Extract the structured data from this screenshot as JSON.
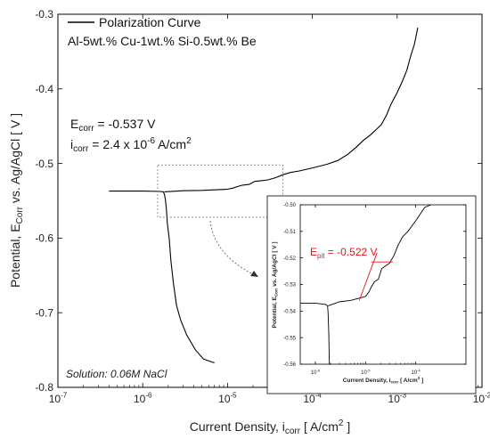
{
  "chart_data": [
    {
      "type": "line",
      "xscale": "log",
      "xlim": [
        1e-07,
        0.01
      ],
      "ylim": [
        -0.8,
        -0.3
      ],
      "xlabel": {
        "main": "Current Density, i",
        "sub": "corr",
        "rest": "  [ A/cm",
        "sup": "2",
        "end": " ]"
      },
      "ylabel": {
        "main": "Potential, E",
        "sub": "Corr",
        "rest": " vs. Ag/AgCl  [ V ]"
      },
      "x_ticks": [
        {
          "value": 1e-07,
          "base": "10",
          "exp": "-7"
        },
        {
          "value": 1e-06,
          "base": "10",
          "exp": "-6"
        },
        {
          "value": 1e-05,
          "base": "10",
          "exp": "-5"
        },
        {
          "value": 0.0001,
          "base": "10",
          "exp": "-4"
        },
        {
          "value": 0.001,
          "base": "10",
          "exp": "-3"
        },
        {
          "value": 0.01,
          "base": "10",
          "exp": "-2"
        }
      ],
      "y_ticks": [
        {
          "value": -0.3,
          "label": "-0.3"
        },
        {
          "value": -0.4,
          "label": "-0.4"
        },
        {
          "value": -0.5,
          "label": "-0.5"
        },
        {
          "value": -0.6,
          "label": "-0.6"
        },
        {
          "value": -0.7,
          "label": "-0.7"
        },
        {
          "value": -0.8,
          "label": "-0.8"
        }
      ],
      "legend": {
        "label": "Polarization Curve",
        "placement": "top-left"
      },
      "alloy_label": "Al-5wt.% Cu-1wt.% Si-0.5wt.% Be",
      "ecorr": {
        "prefix": "E",
        "sub": "corr",
        "value": " = -0.537 V"
      },
      "icorr": {
        "prefix": "i",
        "sub": "corr",
        "mid": " = 2.4 x 10",
        "sup": "-6",
        "rest": " A/cm",
        "sup2": "2"
      },
      "solution": "Solution: 0.06M NaCl",
      "series": [
        {
          "color": "#000000",
          "cathodic": [
            [
              4e-07,
              -0.537
            ],
            [
              1e-06,
              -0.537
            ],
            [
              1.6e-06,
              -0.5375
            ],
            [
              1.75e-06,
              -0.538
            ],
            [
              1.8e-06,
              -0.541
            ],
            [
              1.85e-06,
              -0.548
            ],
            [
              1.9e-06,
              -0.56
            ],
            [
              1.95e-06,
              -0.58
            ],
            [
              2.05e-06,
              -0.6
            ],
            [
              2.15e-06,
              -0.63
            ],
            [
              2.3e-06,
              -0.66
            ],
            [
              2.5e-06,
              -0.69
            ],
            [
              2.8e-06,
              -0.71
            ],
            [
              3.3e-06,
              -0.73
            ],
            [
              4.2e-06,
              -0.75
            ],
            [
              5.2e-06,
              -0.762
            ],
            [
              6.5e-06,
              -0.766
            ],
            [
              7e-06,
              -0.767
            ]
          ],
          "anodic": [
            [
              1.8e-06,
              -0.538
            ],
            [
              3e-06,
              -0.5365
            ],
            [
              5e-06,
              -0.536
            ],
            [
              8e-06,
              -0.535
            ],
            [
              1e-05,
              -0.5345
            ],
            [
              1.15e-05,
              -0.533
            ],
            [
              1.3e-05,
              -0.531
            ],
            [
              1.5e-05,
              -0.529
            ],
            [
              1.8e-05,
              -0.528
            ],
            [
              2.1e-05,
              -0.524
            ],
            [
              2.5e-05,
              -0.523
            ],
            [
              3e-05,
              -0.522
            ],
            [
              3.7e-05,
              -0.519
            ],
            [
              4.5e-05,
              -0.515
            ],
            [
              5.5e-05,
              -0.512
            ],
            [
              7e-05,
              -0.51
            ],
            [
              0.0001,
              -0.506
            ],
            [
              0.00015,
              -0.501
            ],
            [
              0.0002,
              -0.496
            ],
            [
              0.00026,
              -0.488
            ],
            [
              0.00033,
              -0.478
            ],
            [
              0.0004,
              -0.469
            ],
            [
              0.00048,
              -0.462
            ],
            [
              0.00056,
              -0.455
            ],
            [
              0.00065,
              -0.448
            ],
            [
              0.00075,
              -0.435
            ],
            [
              0.00085,
              -0.42
            ],
            [
              0.001,
              -0.405
            ],
            [
              0.00115,
              -0.39
            ],
            [
              0.0013,
              -0.375
            ],
            [
              0.00145,
              -0.355
            ],
            [
              0.0016,
              -0.34
            ],
            [
              0.00175,
              -0.318
            ]
          ]
        }
      ],
      "zoom_box": {
        "x": [
          1.5e-06,
          4.5e-05
        ],
        "y": [
          -0.572,
          -0.502
        ]
      }
    },
    {
      "type": "line",
      "role": "inset",
      "xscale": "log",
      "xlim": [
        5e-07,
        0.001
      ],
      "ylim": [
        -0.56,
        -0.5
      ],
      "xlabel": {
        "main": "Current Density, i",
        "sub": "corr",
        "rest": "  [ A/cm",
        "sup": "2",
        "end": " ]"
      },
      "ylabel": {
        "main": "Potential, E",
        "sub": "Corr",
        "rest": " vs. Ag/AgCl [ V ]"
      },
      "x_ticks": [
        {
          "value": 1e-06,
          "base": "10",
          "exp": "-6"
        },
        {
          "value": 1e-05,
          "base": "10",
          "exp": "-5"
        },
        {
          "value": 0.0001,
          "base": "10",
          "exp": "-4"
        }
      ],
      "y_ticks": [
        {
          "value": -0.5,
          "label": "-0.50"
        },
        {
          "value": -0.51,
          "label": "-0.51"
        },
        {
          "value": -0.52,
          "label": "-0.52"
        },
        {
          "value": -0.53,
          "label": "-0.53"
        },
        {
          "value": -0.54,
          "label": "-0.54"
        },
        {
          "value": -0.55,
          "label": "-0.55"
        },
        {
          "value": -0.56,
          "label": "-0.56"
        }
      ],
      "epit": {
        "prefix": "E",
        "sub": "pit",
        "value": " = -0.522 V"
      },
      "tangent": [
        [
          7.5e-06,
          -0.536
        ],
        [
          1.7e-05,
          -0.518
        ]
      ],
      "epit_marker": [
        [
          1.3e-05,
          -0.5215
        ],
        [
          3.5e-05,
          -0.5215
        ]
      ],
      "epit_color": "#e8141b"
    }
  ]
}
